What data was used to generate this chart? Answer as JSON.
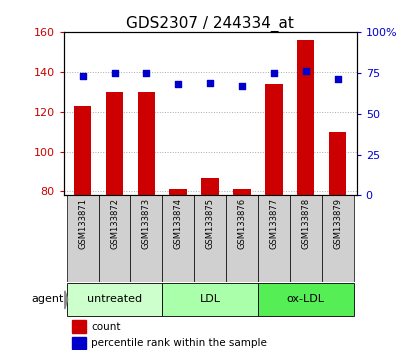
{
  "title": "GDS2307 / 244334_at",
  "samples": [
    "GSM133871",
    "GSM133872",
    "GSM133873",
    "GSM133874",
    "GSM133875",
    "GSM133876",
    "GSM133877",
    "GSM133878",
    "GSM133879"
  ],
  "counts": [
    123,
    130,
    130,
    81,
    87,
    81,
    134,
    156,
    110
  ],
  "percentiles": [
    73,
    75,
    75,
    68,
    69,
    67,
    75,
    76,
    71
  ],
  "ylim_left": [
    78,
    160
  ],
  "ylim_right": [
    0,
    100
  ],
  "yticks_left": [
    80,
    100,
    120,
    140,
    160
  ],
  "ytick_labels_left": [
    "80",
    "100",
    "120",
    "140",
    "160"
  ],
  "yticks_right": [
    0,
    25,
    50,
    75,
    100
  ],
  "ytick_labels_right": [
    "0",
    "25",
    "50",
    "75",
    "100%"
  ],
  "groups": [
    {
      "label": "untreated",
      "indices": [
        0,
        1,
        2
      ],
      "color": "#ccffcc"
    },
    {
      "label": "LDL",
      "indices": [
        3,
        4,
        5
      ],
      "color": "#aaffaa"
    },
    {
      "label": "ox-LDL",
      "indices": [
        6,
        7,
        8
      ],
      "color": "#55ee55"
    }
  ],
  "bar_color": "#cc0000",
  "dot_color": "#0000cc",
  "grid_color": "#aaaaaa",
  "bar_width": 0.55,
  "agent_label": "agent",
  "legend_count_label": "count",
  "legend_pct_label": "percentile rank within the sample",
  "title_fontsize": 11,
  "tick_label_color_left": "#cc0000",
  "tick_label_color_right": "#0000cc",
  "label_bg_color": "#d0d0d0"
}
